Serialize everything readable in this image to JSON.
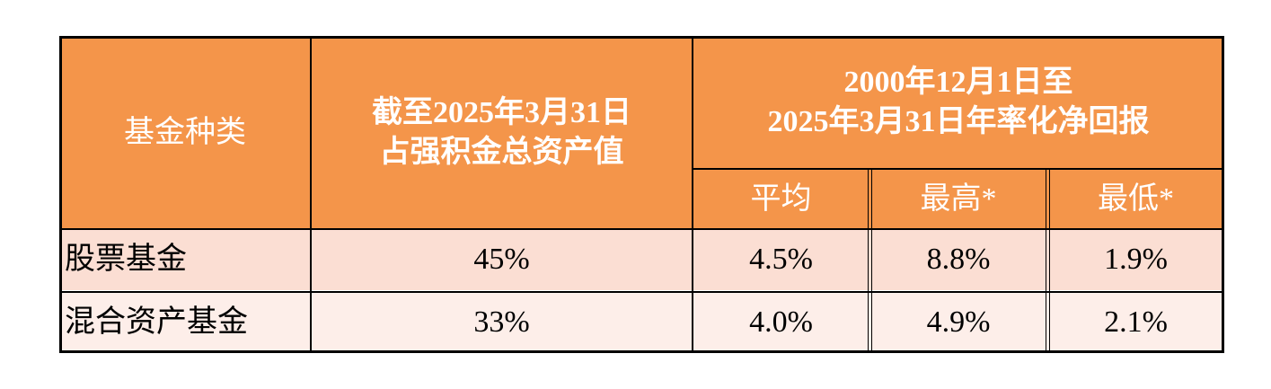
{
  "table": {
    "header": {
      "fund_type": "基金种类",
      "share": [
        "截至2025年3月31日",
        "占强积金总资产值"
      ],
      "return_group": [
        "2000年12月1日至",
        "2025年3月31日年率化净回报"
      ],
      "return_columns": [
        "平均",
        "最高*",
        "最低*"
      ]
    },
    "rows": [
      [
        "股票基金",
        "45%",
        "4.5%",
        "8.8%",
        "1.9%"
      ],
      [
        "混合资产基金",
        "33%",
        "4.0%",
        "4.9%",
        "2.1%"
      ]
    ]
  }
}
